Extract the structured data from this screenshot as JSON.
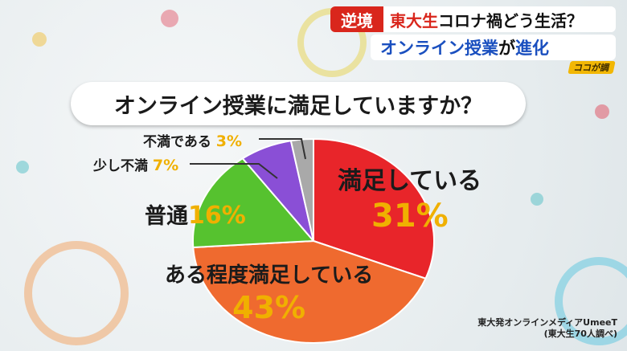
{
  "header": {
    "tag": "逆境",
    "line1_red": "東大生",
    "line1_rest": "コロナ禍どう生活？",
    "line2_blue": "オンライン授業",
    "line2_ga": "が",
    "line2_end": "進化",
    "logo": "ココが調"
  },
  "question": "オンライン授業に満足していますか？",
  "chart_data": {
    "type": "pie",
    "title": "オンライン授業に満足していますか？",
    "slices": [
      {
        "label": "満足している",
        "value": 31,
        "display": "31%",
        "color": "#e8252a"
      },
      {
        "label": "ある程度満足している",
        "value": 43,
        "display": "43%",
        "color": "#ef6a2f"
      },
      {
        "label": "普通",
        "value": 16,
        "display": "16%",
        "color": "#56c22f"
      },
      {
        "label": "少し不満",
        "value": 7,
        "display": "7%",
        "color": "#8a4fd6"
      },
      {
        "label": "不満である",
        "value": 3,
        "display": "3%",
        "color": "#a9a9a9"
      }
    ]
  },
  "source": {
    "line1": "東大発オンラインメディアUmeeT",
    "line2": "(東大生70人調べ)"
  }
}
